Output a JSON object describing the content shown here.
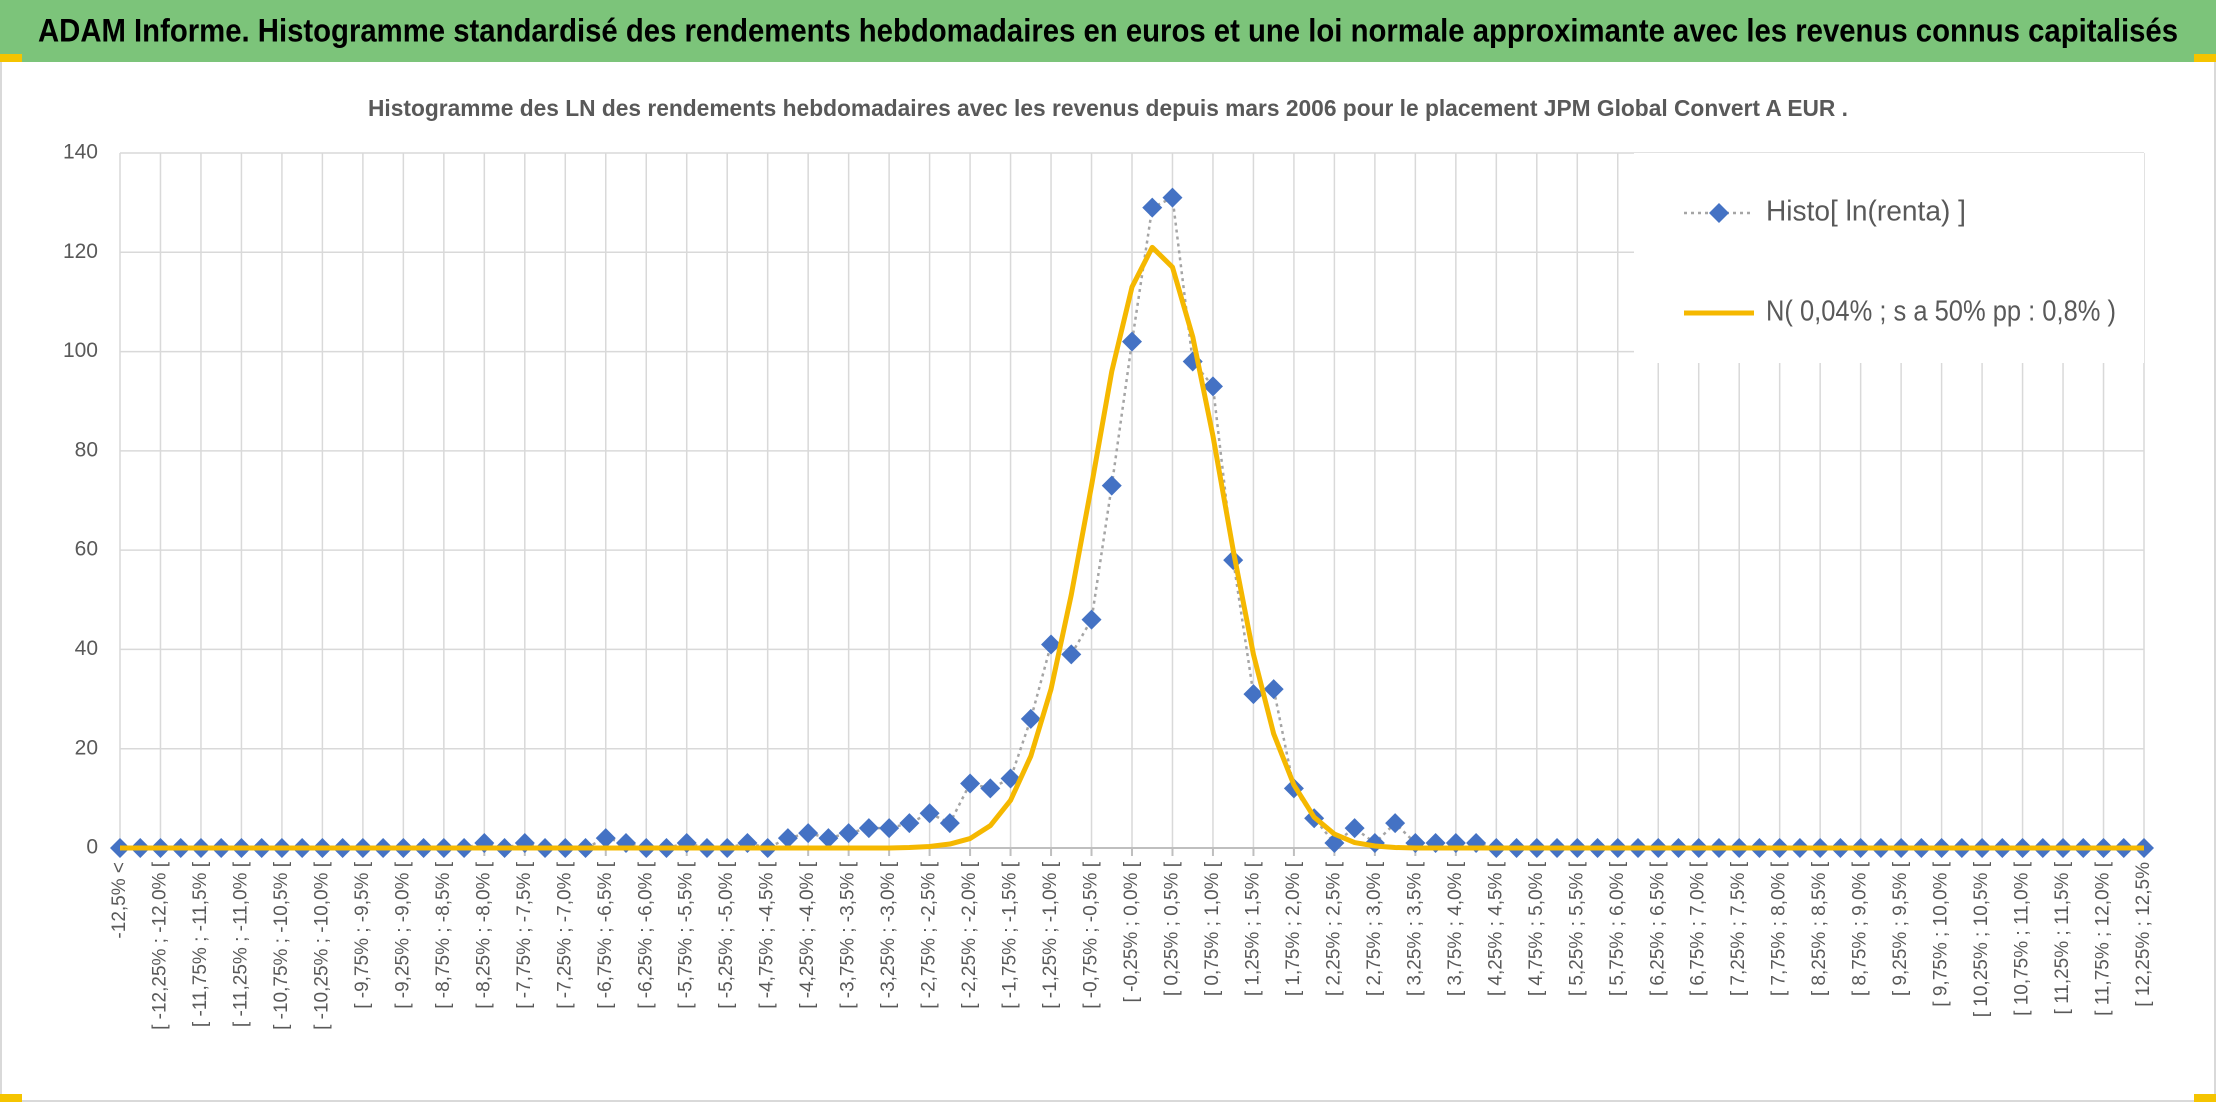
{
  "header": {
    "title": "ADAM Informe. Histogramme standardisé des rendements hebdomadaires en euros et une loi normale approximante avec les revenus connus capitalisés"
  },
  "chart_data": {
    "type": "line",
    "title": "Histogramme des LN des rendements hebdomadaires avec les revenus depuis mars 2006 pour le placement JPM Global Convert A EUR .",
    "categories": [
      "-12,5% <",
      null,
      "[ -12,25% ; -12,0% [",
      null,
      "[ -11,75% ; -11,5% [",
      null,
      "[ -11,25% ; -11,0% [",
      null,
      "[ -10,75% ; -10,5% [",
      null,
      "[ -10,25% ; -10,0% [",
      null,
      "[ -9,75% ; -9,5% [",
      null,
      "[ -9,25% ; -9,0% [",
      null,
      "[ -8,75% ; -8,5% [",
      null,
      "[ -8,25% ; -8,0% [",
      null,
      "[ -7,75% ; -7,5% [",
      null,
      "[ -7,25% ; -7,0% [",
      null,
      "[ -6,75% ; -6,5% [",
      null,
      "[ -6,25% ; -6,0% [",
      null,
      "[ -5,75% ; -5,5% [",
      null,
      "[ -5,25% ; -5,0% [",
      null,
      "[ -4,75% ; -4,5% [",
      null,
      "[ -4,25% ; -4,0% [",
      null,
      "[ -3,75% ; -3,5% [",
      null,
      "[ -3,25% ; -3,0% [",
      null,
      "[ -2,75% ; -2,5% [",
      null,
      "[ -2,25% ; -2,0% [",
      null,
      "[ -1,75% ; -1,5% [",
      null,
      "[ -1,25% ; -1,0% [",
      null,
      "[ -0,75% ; -0,5% [",
      null,
      "[ -0,25% ; 0,0% [",
      null,
      "[ 0,25% ; 0,5% [",
      null,
      "[ 0,75% ; 1,0% [",
      null,
      "[ 1,25% ; 1,5% [",
      null,
      "[ 1,75% ; 2,0% [",
      null,
      "[ 2,25% ; 2,5% [",
      null,
      "[ 2,75% ; 3,0% [",
      null,
      "[ 3,25% ; 3,5% [",
      null,
      "[ 3,75% ; 4,0% [",
      null,
      "[ 4,25% ; 4,5% [",
      null,
      "[ 4,75% ; 5,0% [",
      null,
      "[ 5,25% ; 5,5% [",
      null,
      "[ 5,75% ; 6,0% [",
      null,
      "[ 6,25% ; 6,5% [",
      null,
      "[ 6,75% ; 7,0% [",
      null,
      "[ 7,25% ; 7,5% [",
      null,
      "[ 7,75% ; 8,0% [",
      null,
      "[ 8,25% ; 8,5% [",
      null,
      "[ 8,75% ; 9,0% [",
      null,
      "[ 9,25% ; 9,5% [",
      null,
      "[ 9,75% ; 10,0% [",
      null,
      "[ 10,25% ; 10,5% [",
      null,
      "[ 10,75% ; 11,0% [",
      null,
      "[ 11,25% ; 11,5% [",
      null,
      "[ 11,75% ; 12,0% [",
      null,
      "[ 12,25% ; 12,5%"
    ],
    "series": [
      {
        "name": "Histo[ ln(renta) ]",
        "color": "#4472c4",
        "line_color": "#a5a5a5",
        "marker": "diamond",
        "line_style": "dotted",
        "values": [
          0,
          0,
          0,
          0,
          0,
          0,
          0,
          0,
          0,
          0,
          0,
          0,
          0,
          0,
          0,
          0,
          0,
          0,
          1,
          0,
          1,
          0,
          0,
          0,
          2,
          1,
          0,
          0,
          1,
          0,
          0,
          1,
          0,
          2,
          3,
          2,
          3,
          4,
          4,
          5,
          7,
          5,
          13,
          12,
          14,
          26,
          41,
          39,
          46,
          73,
          102,
          129,
          131,
          98,
          93,
          58,
          31,
          32,
          12,
          6,
          1,
          4,
          1,
          5,
          1,
          1,
          1,
          1,
          0,
          0,
          0,
          0,
          0,
          0,
          0,
          0,
          0,
          0,
          0,
          0,
          0,
          0,
          0,
          0,
          0,
          0,
          0,
          0,
          0,
          0,
          0,
          0,
          0,
          0,
          0,
          0,
          0,
          0,
          0,
          0,
          0
        ]
      },
      {
        "name": "N( 0,04% ; s a 50% pp : 0,8% )",
        "color": "#f5b800",
        "line_color": "#f5b800",
        "marker": "none",
        "line_style": "solid",
        "values": [
          0,
          0,
          0,
          0,
          0,
          0,
          0,
          0,
          0,
          0,
          0,
          0,
          0,
          0,
          0,
          0,
          0,
          0,
          0,
          0,
          0,
          0,
          0,
          0,
          0,
          0,
          0,
          0,
          0,
          0,
          0,
          0,
          0,
          0,
          0,
          0,
          0,
          0,
          0,
          0.1,
          0.3,
          0.8,
          1.9,
          4.5,
          9.6,
          18.5,
          32,
          51,
          73,
          96,
          113,
          121,
          117,
          103,
          83,
          60,
          39,
          23,
          12.7,
          6.2,
          2.8,
          1.1,
          0.4,
          0.1,
          0,
          0,
          0,
          0,
          0,
          0,
          0,
          0,
          0,
          0,
          0,
          0,
          0,
          0,
          0,
          0,
          0,
          0,
          0,
          0,
          0,
          0,
          0,
          0,
          0,
          0,
          0,
          0,
          0,
          0,
          0,
          0,
          0,
          0,
          0,
          0,
          0
        ]
      }
    ],
    "ylim": [
      0,
      140
    ],
    "yticks": [
      0,
      20,
      40,
      60,
      80,
      100,
      120,
      140
    ],
    "grid": true,
    "legend": "upper right"
  }
}
